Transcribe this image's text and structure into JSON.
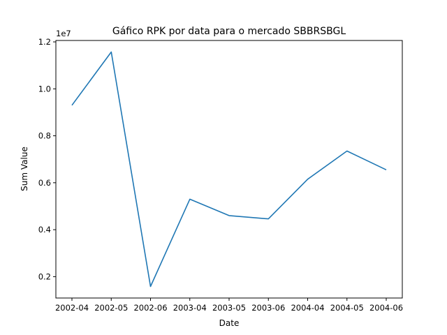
{
  "chart_data": {
    "type": "line",
    "title": "Gáfico RPK por data para o mercado SBBRSBGL",
    "xlabel": "Date",
    "ylabel": "Sum Value",
    "y_offset_label": "1e7",
    "categories": [
      "2002-04",
      "2002-05",
      "2002-06",
      "2003-04",
      "2003-05",
      "2003-06",
      "2004-04",
      "2004-05",
      "2004-06"
    ],
    "series": [
      {
        "values": [
          9300000,
          11570000,
          1580000,
          5300000,
          4600000,
          4460000,
          6150000,
          7350000,
          6550000
        ]
      }
    ],
    "y_ticks": [
      0.2,
      0.4,
      0.6,
      0.8,
      1.0,
      1.2
    ],
    "y_tick_labels": [
      "0.2",
      "0.4",
      "0.6",
      "0.8",
      "1.0",
      "1.2"
    ],
    "ylim": [
      1090000,
      12060000
    ],
    "grid": false,
    "line_color": "#1f77b4"
  }
}
